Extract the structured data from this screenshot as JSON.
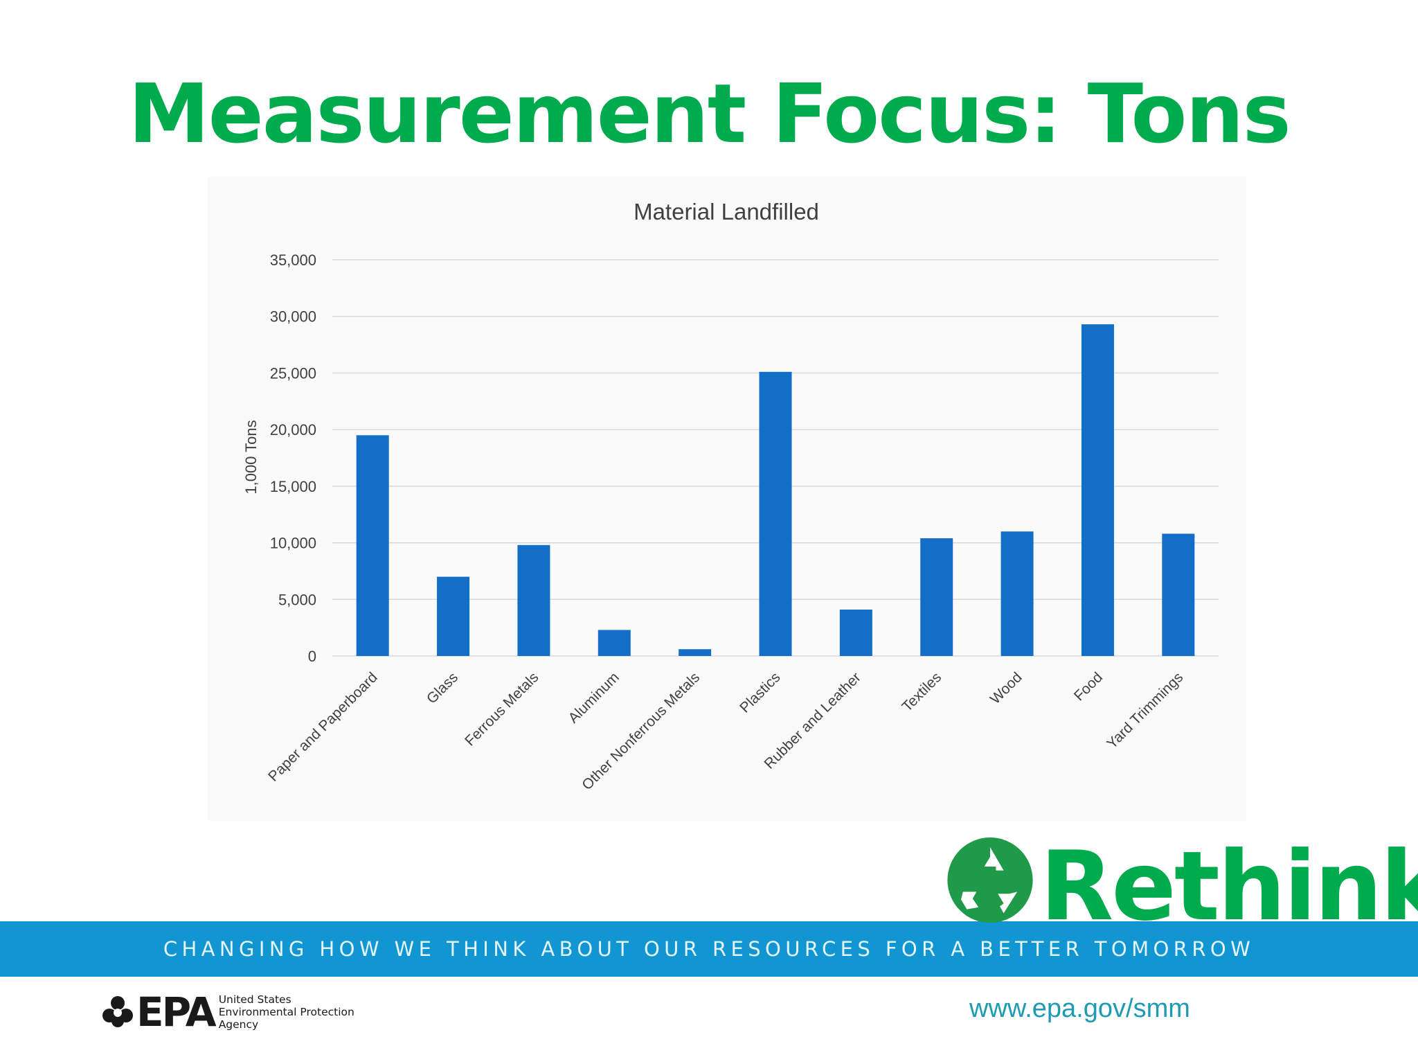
{
  "slide": {
    "title": "Measurement Focus: Tons"
  },
  "chart_data": {
    "type": "bar",
    "title": "Material Landfilled",
    "xlabel": "",
    "ylabel": "1,000 Tons",
    "ylim": [
      0,
      35000
    ],
    "yticks": [
      "0",
      "5,000",
      "10,000",
      "15,000",
      "20,000",
      "25,000",
      "30,000",
      "35,000"
    ],
    "grid": true,
    "categories": [
      "Paper and Paperboard",
      "Glass",
      "Ferrous Metals",
      "Aluminum",
      "Other Nonferrous Metals",
      "Plastics",
      "Rubber and Leather",
      "Textiles",
      "Wood",
      "Food",
      "Yard Trimmings"
    ],
    "values": [
      19500,
      7000,
      9800,
      2300,
      600,
      25100,
      4100,
      10400,
      11000,
      29300,
      10800
    ]
  },
  "banner": {
    "text": "CHANGING HOW WE THINK ABOUT OUR RESOURCES FOR A BETTER TOMORROW"
  },
  "rethink_logo": {
    "word": "Rethink",
    "icon": "recycle-icon"
  },
  "epa_logo": {
    "word": "EPA",
    "icon": "epa-flower-icon",
    "agency_lines": [
      "United States",
      "Environmental Protection",
      "Agency"
    ]
  },
  "footer": {
    "url": "www.epa.gov/smm"
  },
  "colors": {
    "title_green": "#00ab4e",
    "bar_blue": "#136ec8",
    "banner_blue": "#1296d2",
    "url_teal": "#1e9bb3",
    "axis_text": "#404040",
    "grid": "#d9d9d9"
  }
}
